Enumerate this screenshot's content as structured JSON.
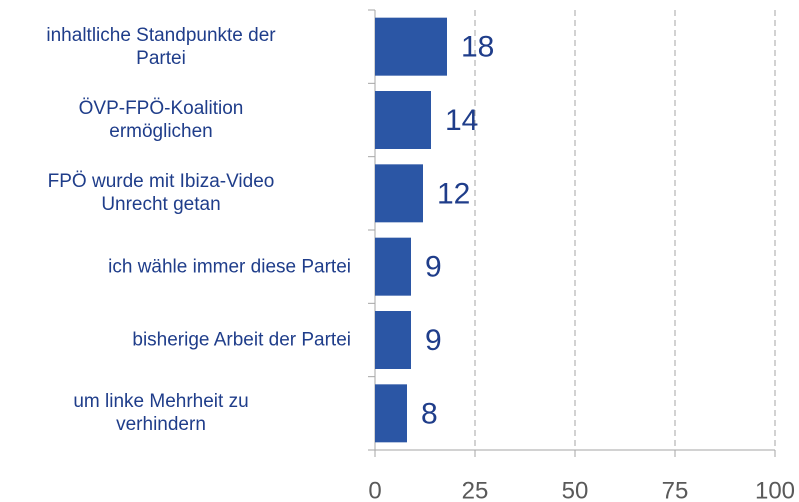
{
  "chart_data": {
    "type": "barh",
    "categories": [
      "inhaltliche Standpunkte der\nPartei",
      "ÖVP-FPÖ-Koalition\nermöglichen",
      "FPÖ wurde mit Ibiza-Video\nUnrecht getan",
      "ich wähle immer diese Partei",
      "bisherige Arbeit der Partei",
      "um  linke Mehrheit zu\nverhindern"
    ],
    "values": [
      18,
      14,
      12,
      9,
      9,
      8
    ],
    "color": "#2b56a5",
    "xlim": [
      0,
      100
    ],
    "xticks": [
      0,
      25,
      50,
      75,
      100
    ],
    "grid": true
  }
}
